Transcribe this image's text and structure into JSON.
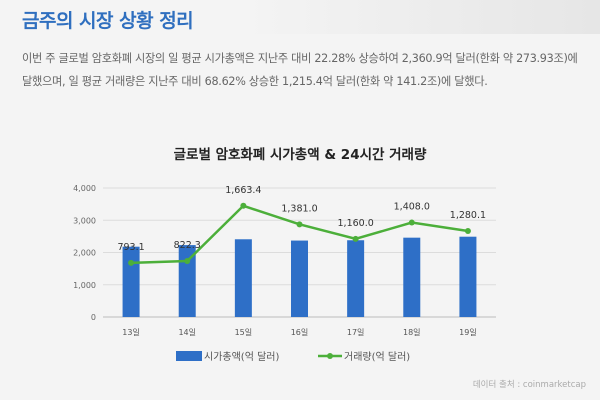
{
  "page": {
    "title": "금주의 시장 상황 정리",
    "summary": "이번 주 글로벌 암호화폐 시장의 일 평균 시가총액은 지난주 대비 22.28% 상승하여 2,360.9억 달러(한화 약 273.93조)에 달했으며, 일 평균 거래량은 지난주 대비 68.62% 상승한 1,215.4억 달러(한화 약 141.2조)에 달했다.",
    "source_credit": "데이터 출처 : coinmarketcap"
  },
  "colors": {
    "title_blue": "#2f6fbf",
    "bar_blue": "#2e6fc7",
    "line_green": "#4caf3a",
    "text_gray": "#666666"
  },
  "chart_data": {
    "type": "bar",
    "title": "글로벌 암호화폐 시가총액 & 24시간 거래량",
    "categories": [
      "13일",
      "14일",
      "15일",
      "16일",
      "17일",
      "18일",
      "19일"
    ],
    "ylim": [
      0,
      4000
    ],
    "yticks": [
      "0",
      "1,000",
      "2,000",
      "3,000",
      "4,000"
    ],
    "series": [
      {
        "name": "시가총액(억 달러)",
        "type": "bar",
        "values": [
          2180,
          2230,
          2410,
          2370,
          2380,
          2460,
          2490
        ]
      },
      {
        "name": "거래량(억 달러)",
        "type": "line",
        "values": [
          793.1,
          822.3,
          1663.4,
          1381.0,
          1160.0,
          1408.0,
          1280.1
        ],
        "labels": [
          "793.1",
          "822.3",
          "1,663.4",
          "1,381.0",
          "1,160.0",
          "1,408.0",
          "1,280.1"
        ]
      }
    ],
    "legend": "bottom"
  }
}
